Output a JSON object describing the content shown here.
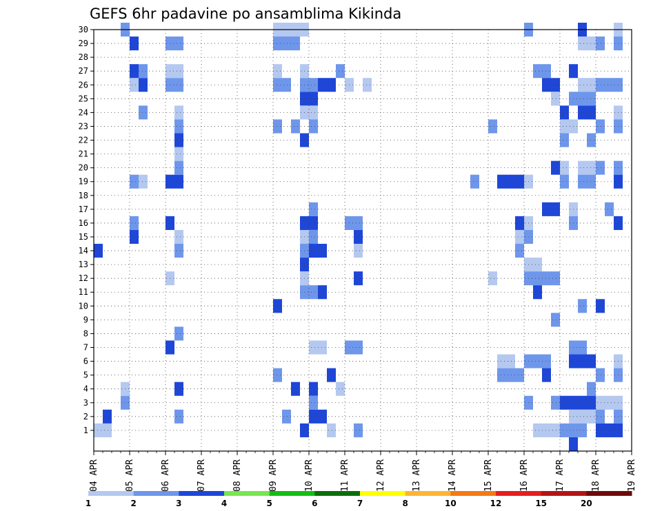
{
  "chart_data": {
    "type": "heatmap",
    "title": "GEFS 6hr padavine po ansamblima Kikinda",
    "y_categories": [
      1,
      2,
      3,
      4,
      5,
      6,
      7,
      8,
      9,
      10,
      11,
      12,
      13,
      14,
      15,
      16,
      17,
      18,
      19,
      20,
      21,
      22,
      23,
      24,
      25,
      26,
      27,
      28,
      29,
      30
    ],
    "x_tick_labels": [
      "04 APR",
      "05 APR",
      "06 APR",
      "07 APR",
      "08 APR",
      "09 APR",
      "10 APR",
      "11 APR",
      "12 APR",
      "13 APR",
      "14 APR",
      "15 APR",
      "16 APR",
      "17 APR",
      "18 APR",
      "19 APR"
    ],
    "x_range_days": [
      0,
      15
    ],
    "time_step_hours": 6,
    "grid": "dotted",
    "colorbar": {
      "labels": [
        "1",
        "2",
        "3",
        "4",
        "5",
        "6",
        "7",
        "8",
        "10",
        "12",
        "15",
        "20"
      ],
      "colors": [
        "#b4c8f0",
        "#6e96eb",
        "#1e46d7",
        "#78e650",
        "#14be14",
        "#0a6e0a",
        "#ffff00",
        "#ffb432",
        "#f57814",
        "#e61e1e",
        "#b41414",
        "#6e0a0a"
      ]
    },
    "cells": [
      [
        1,
        0,
        1
      ],
      [
        1,
        0,
        14
      ],
      [
        1,
        1,
        1
      ],
      [
        1,
        1,
        2
      ],
      [
        1,
        3,
        3
      ],
      [
        1,
        3,
        4
      ],
      [
        1,
        3,
        30
      ],
      [
        1,
        4,
        29
      ],
      [
        1,
        5,
        24
      ],
      [
        1,
        5,
        26
      ],
      [
        1,
        5,
        27
      ],
      [
        1,
        5,
        19
      ],
      [
        2,
        0,
        26
      ],
      [
        2,
        0,
        27
      ],
      [
        2,
        0,
        15
      ],
      [
        2,
        0,
        16
      ],
      [
        2,
        0,
        19
      ],
      [
        3,
        0,
        29
      ],
      [
        3,
        0,
        26
      ],
      [
        3,
        0,
        27
      ],
      [
        3,
        0,
        19
      ],
      [
        3,
        0,
        12
      ],
      [
        3,
        0,
        16
      ],
      [
        3,
        0,
        7
      ],
      [
        3,
        1,
        8
      ],
      [
        3,
        1,
        14
      ],
      [
        3,
        1,
        15
      ],
      [
        3,
        1,
        2
      ],
      [
        3,
        1,
        4
      ],
      [
        3,
        1,
        19
      ],
      [
        3,
        1,
        20
      ],
      [
        3,
        1,
        21
      ],
      [
        3,
        1,
        22
      ],
      [
        3,
        1,
        23
      ],
      [
        3,
        1,
        24
      ],
      [
        3,
        1,
        26
      ],
      [
        3,
        1,
        27
      ],
      [
        3,
        1,
        29
      ],
      [
        6,
        0,
        5
      ],
      [
        6,
        0,
        10
      ],
      [
        6,
        0,
        30
      ],
      [
        6,
        0,
        23
      ],
      [
        6,
        0,
        26
      ],
      [
        6,
        0,
        27
      ],
      [
        6,
        0,
        29
      ],
      [
        6,
        0,
        30
      ],
      [
        6,
        1,
        2
      ],
      [
        6,
        1,
        26
      ],
      [
        6,
        1,
        29
      ],
      [
        6,
        1,
        30
      ],
      [
        6,
        2,
        4
      ],
      [
        6,
        2,
        29
      ],
      [
        6,
        2,
        30
      ],
      [
        6,
        2,
        23
      ],
      [
        6,
        3,
        30
      ],
      [
        6,
        3,
        11
      ],
      [
        6,
        3,
        15
      ],
      [
        6,
        3,
        16
      ],
      [
        6,
        3,
        14
      ],
      [
        6,
        3,
        13
      ],
      [
        6,
        3,
        1
      ],
      [
        6,
        3,
        25
      ],
      [
        6,
        3,
        24
      ],
      [
        6,
        3,
        22
      ],
      [
        6,
        3,
        26
      ],
      [
        6,
        3,
        27
      ],
      [
        6,
        3,
        12
      ],
      [
        6,
        4,
        3
      ],
      [
        6,
        4,
        4
      ],
      [
        6,
        4,
        16
      ],
      [
        6,
        4,
        15
      ],
      [
        6,
        4,
        14
      ],
      [
        6,
        4,
        17
      ],
      [
        6,
        4,
        26
      ],
      [
        6,
        4,
        25
      ],
      [
        6,
        4,
        24
      ],
      [
        6,
        4,
        23
      ],
      [
        6,
        4,
        11
      ],
      [
        6,
        4,
        15
      ],
      [
        7,
        0,
        2
      ],
      [
        7,
        0,
        3
      ],
      [
        7,
        0,
        7
      ],
      [
        7,
        0,
        14
      ],
      [
        7,
        0,
        15
      ],
      [
        7,
        1,
        2
      ],
      [
        7,
        1,
        7
      ],
      [
        7,
        1,
        14
      ],
      [
        7,
        1,
        26
      ],
      [
        7,
        1,
        11
      ],
      [
        7,
        2,
        5
      ],
      [
        7,
        2,
        26
      ],
      [
        7,
        2,
        1
      ],
      [
        7,
        3,
        27
      ],
      [
        7,
        3,
        4
      ],
      [
        8,
        0,
        16
      ],
      [
        8,
        0,
        26
      ],
      [
        8,
        0,
        7
      ],
      [
        8,
        1,
        16
      ],
      [
        8,
        1,
        15
      ],
      [
        8,
        1,
        14
      ],
      [
        8,
        1,
        12
      ],
      [
        8,
        1,
        7
      ],
      [
        8,
        1,
        1
      ],
      [
        8,
        2,
        26
      ],
      [
        11,
        2,
        19
      ],
      [
        12,
        0,
        23
      ],
      [
        12,
        0,
        12
      ],
      [
        12,
        1,
        5
      ],
      [
        12,
        1,
        6
      ],
      [
        12,
        1,
        19
      ],
      [
        12,
        2,
        5
      ],
      [
        12,
        2,
        6
      ],
      [
        12,
        2,
        19
      ],
      [
        12,
        3,
        5
      ],
      [
        12,
        3,
        19
      ],
      [
        12,
        3,
        14
      ],
      [
        12,
        3,
        16
      ],
      [
        12,
        3,
        15
      ],
      [
        13,
        0,
        30
      ],
      [
        13,
        0,
        19
      ],
      [
        13,
        0,
        15
      ],
      [
        13,
        0,
        16
      ],
      [
        13,
        0,
        13
      ],
      [
        13,
        0,
        12
      ],
      [
        13,
        0,
        6
      ],
      [
        13,
        0,
        3
      ],
      [
        13,
        1,
        27
      ],
      [
        13,
        1,
        13
      ],
      [
        13,
        1,
        12
      ],
      [
        13,
        1,
        11
      ],
      [
        13,
        1,
        6
      ],
      [
        13,
        1,
        1
      ],
      [
        13,
        2,
        27
      ],
      [
        13,
        2,
        26
      ],
      [
        13,
        2,
        17
      ],
      [
        13,
        2,
        12
      ],
      [
        13,
        2,
        1
      ],
      [
        13,
        2,
        6
      ],
      [
        13,
        2,
        5
      ],
      [
        13,
        3,
        26
      ],
      [
        13,
        3,
        25
      ],
      [
        13,
        3,
        20
      ],
      [
        13,
        3,
        17
      ],
      [
        13,
        3,
        12
      ],
      [
        13,
        3,
        3
      ],
      [
        13,
        3,
        1
      ],
      [
        13,
        3,
        9
      ],
      [
        14,
        0,
        24
      ],
      [
        14,
        0,
        23
      ],
      [
        14,
        0,
        22
      ],
      [
        14,
        0,
        20
      ],
      [
        14,
        0,
        19
      ],
      [
        14,
        0,
        3
      ],
      [
        14,
        0,
        1
      ],
      [
        14,
        1,
        27
      ],
      [
        14,
        1,
        25
      ],
      [
        14,
        1,
        23
      ],
      [
        14,
        1,
        17
      ],
      [
        14,
        1,
        16
      ],
      [
        14,
        1,
        7
      ],
      [
        14,
        1,
        6
      ],
      [
        14,
        1,
        3
      ],
      [
        14,
        1,
        2
      ],
      [
        14,
        1,
        1
      ],
      [
        14,
        1,
        0
      ],
      [
        14,
        2,
        30
      ],
      [
        14,
        2,
        29
      ],
      [
        14,
        2,
        26
      ],
      [
        14,
        2,
        25
      ],
      [
        14,
        2,
        24
      ],
      [
        14,
        2,
        20
      ],
      [
        14,
        2,
        19
      ],
      [
        14,
        2,
        10
      ],
      [
        14,
        2,
        7
      ],
      [
        14,
        2,
        6
      ],
      [
        14,
        2,
        3
      ],
      [
        14,
        2,
        2
      ],
      [
        14,
        2,
        1
      ],
      [
        14,
        3,
        29
      ],
      [
        14,
        3,
        26
      ],
      [
        14,
        3,
        25
      ],
      [
        14,
        3,
        24
      ],
      [
        14,
        3,
        22
      ],
      [
        14,
        3,
        20
      ],
      [
        14,
        3,
        19
      ],
      [
        14,
        3,
        6
      ],
      [
        14,
        3,
        4
      ],
      [
        14,
        3,
        3
      ],
      [
        14,
        3,
        2
      ],
      [
        15,
        0,
        29
      ],
      [
        15,
        0,
        26
      ],
      [
        15,
        0,
        23
      ],
      [
        15,
        0,
        20
      ],
      [
        15,
        0,
        10
      ],
      [
        15,
        0,
        5
      ],
      [
        15,
        0,
        3
      ],
      [
        15,
        0,
        2
      ],
      [
        15,
        0,
        1
      ],
      [
        15,
        1,
        26
      ],
      [
        15,
        1,
        17
      ],
      [
        15,
        1,
        3
      ],
      [
        15,
        1,
        1
      ],
      [
        15,
        2,
        29
      ],
      [
        15,
        2,
        30
      ],
      [
        15,
        2,
        26
      ],
      [
        15,
        2,
        24
      ],
      [
        15,
        2,
        23
      ],
      [
        15,
        2,
        20
      ],
      [
        15,
        2,
        19
      ],
      [
        15,
        2,
        16
      ],
      [
        15,
        2,
        6
      ],
      [
        15,
        2,
        5
      ],
      [
        15,
        2,
        3
      ],
      [
        15,
        2,
        2
      ],
      [
        15,
        2,
        1
      ]
    ]
  },
  "colorbar_values": [
    "1",
    "2",
    "3",
    "4",
    "5",
    "6",
    "7",
    "8",
    "10",
    "12",
    "15",
    "20"
  ]
}
